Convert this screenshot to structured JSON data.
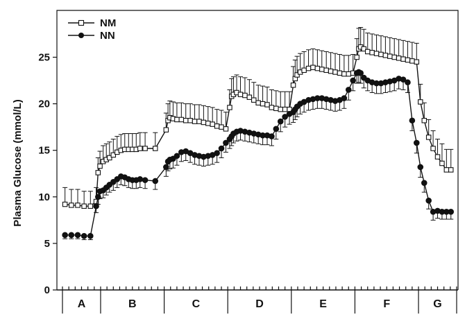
{
  "chart_data": {
    "type": "line",
    "ylabel": "Plasma Glucose (mmol/L)",
    "xlabel": "",
    "ylim": [
      0,
      30
    ],
    "yticks": [
      "0",
      "5",
      "10",
      "15",
      "20",
      "25"
    ],
    "phase_labels": [
      "A",
      "B",
      "C",
      "D",
      "E",
      "F",
      "G"
    ],
    "phase_bounds": [
      0,
      6,
      16,
      26,
      36,
      46,
      56,
      62
    ],
    "legend": {
      "position": "top-left"
    },
    "series": [
      {
        "name": "NM",
        "marker": "open-square",
        "x": [
          0.4,
          1.4,
          2.4,
          3.4,
          4.4,
          5.3,
          5.6,
          5.9,
          6.4,
          6.9,
          7.4,
          8.0,
          8.6,
          9.2,
          9.8,
          10.4,
          11.0,
          11.6,
          12.2,
          13.0,
          14.6,
          16.3,
          16.6,
          16.9,
          17.4,
          18.0,
          18.7,
          19.4,
          20.1,
          20.8,
          21.5,
          22.2,
          22.9,
          23.6,
          24.3,
          25.0,
          25.7,
          26.3,
          26.6,
          26.9,
          27.4,
          28.0,
          28.7,
          29.4,
          30.1,
          30.8,
          31.5,
          32.2,
          32.9,
          33.6,
          34.3,
          35.0,
          35.7,
          36.3,
          36.6,
          36.9,
          37.4,
          38.0,
          38.7,
          39.4,
          40.1,
          40.8,
          41.5,
          42.2,
          42.9,
          43.6,
          44.3,
          45.0,
          45.7,
          46.3,
          46.6,
          46.9,
          47.4,
          48.0,
          48.7,
          49.4,
          50.1,
          50.8,
          51.5,
          52.2,
          52.9,
          53.6,
          54.3,
          55.0,
          55.7,
          56.3,
          56.9,
          57.6,
          58.3,
          59.0,
          59.7,
          60.4,
          61.1
        ],
        "y": [
          9.2,
          9.1,
          9.1,
          9.0,
          9.0,
          9.5,
          12.6,
          13.3,
          13.8,
          14.0,
          14.2,
          14.5,
          14.8,
          15.0,
          15.1,
          15.1,
          15.1,
          15.1,
          15.2,
          15.2,
          15.2,
          17.2,
          18.2,
          18.5,
          18.4,
          18.3,
          18.3,
          18.2,
          18.2,
          18.1,
          18.1,
          18.0,
          17.9,
          17.8,
          17.6,
          17.5,
          17.3,
          19.6,
          20.8,
          21.0,
          21.2,
          21.0,
          20.9,
          20.7,
          20.4,
          20.1,
          20.0,
          19.9,
          19.6,
          19.5,
          19.4,
          19.4,
          19.4,
          22.0,
          22.7,
          23.1,
          23.4,
          23.6,
          23.8,
          23.9,
          23.8,
          23.7,
          23.6,
          23.5,
          23.4,
          23.3,
          23.2,
          23.2,
          23.3,
          25.0,
          25.9,
          26.1,
          25.9,
          25.6,
          25.5,
          25.4,
          25.3,
          25.2,
          25.1,
          25.0,
          24.9,
          24.8,
          24.7,
          24.6,
          24.5,
          20.2,
          18.2,
          16.4,
          15.2,
          14.3,
          13.6,
          12.9,
          12.9
        ],
        "error": [
          1.8,
          1.7,
          1.7,
          1.6,
          1.6,
          1.5,
          1.6,
          1.6,
          1.7,
          1.7,
          1.7,
          1.7,
          1.7,
          1.7,
          1.7,
          1.7,
          1.7,
          1.7,
          1.7,
          1.7,
          1.7,
          1.8,
          1.8,
          1.8,
          1.8,
          1.8,
          1.8,
          1.8,
          1.8,
          1.8,
          1.8,
          1.8,
          1.8,
          1.8,
          1.8,
          1.8,
          1.8,
          1.9,
          1.9,
          1.9,
          1.9,
          1.9,
          1.9,
          1.9,
          1.9,
          1.9,
          1.9,
          1.9,
          1.9,
          1.9,
          1.9,
          1.9,
          1.9,
          2.0,
          2.0,
          2.0,
          2.0,
          2.0,
          2.0,
          2.0,
          2.0,
          2.0,
          2.0,
          2.0,
          2.0,
          2.0,
          2.0,
          2.0,
          2.0,
          2.0,
          2.2,
          2.1,
          2.1,
          2.0,
          2.0,
          2.0,
          2.0,
          2.0,
          2.0,
          2.0,
          2.0,
          2.0,
          2.0,
          2.0,
          2.0,
          1.9,
          1.9,
          1.9,
          1.9,
          1.9,
          2.1,
          2.2,
          2.2
        ]
      },
      {
        "name": "NN",
        "marker": "filled-circle",
        "x": [
          0.4,
          1.4,
          2.4,
          3.4,
          4.4,
          5.3,
          5.6,
          5.9,
          6.4,
          6.9,
          7.4,
          8.0,
          8.6,
          9.2,
          9.8,
          10.4,
          11.0,
          11.6,
          12.2,
          13.0,
          14.6,
          16.3,
          16.6,
          16.9,
          17.4,
          18.0,
          18.7,
          19.4,
          20.1,
          20.8,
          21.5,
          22.2,
          22.9,
          23.6,
          24.3,
          25.0,
          25.7,
          26.3,
          26.6,
          26.9,
          27.4,
          28.0,
          28.7,
          29.4,
          30.1,
          30.8,
          31.5,
          32.2,
          32.9,
          33.6,
          34.3,
          35.0,
          35.7,
          36.3,
          36.6,
          36.9,
          37.4,
          38.0,
          38.7,
          39.4,
          40.1,
          40.8,
          41.5,
          42.2,
          42.9,
          43.6,
          44.3,
          45.0,
          45.7,
          46.3,
          46.6,
          46.9,
          47.4,
          48.0,
          48.7,
          49.4,
          50.1,
          50.8,
          51.5,
          52.2,
          52.9,
          53.6,
          54.3,
          55.0,
          55.7,
          56.3,
          56.9,
          57.6,
          58.3,
          59.0,
          59.7,
          60.4,
          61.1
        ],
        "y": [
          5.9,
          5.9,
          5.9,
          5.8,
          5.8,
          9.0,
          10.0,
          10.6,
          10.7,
          11.0,
          11.3,
          11.6,
          11.9,
          12.2,
          12.1,
          11.9,
          11.8,
          11.8,
          11.9,
          11.8,
          11.7,
          13.2,
          13.8,
          14.0,
          14.1,
          14.4,
          14.8,
          14.9,
          14.7,
          14.5,
          14.4,
          14.3,
          14.4,
          14.5,
          14.7,
          15.2,
          15.8,
          16.2,
          16.5,
          16.8,
          17.0,
          17.1,
          17.0,
          16.9,
          16.8,
          16.7,
          16.6,
          16.6,
          16.5,
          17.3,
          18.1,
          18.6,
          18.9,
          19.1,
          19.4,
          19.7,
          20.0,
          20.2,
          20.4,
          20.5,
          20.6,
          20.6,
          20.5,
          20.4,
          20.3,
          20.4,
          20.6,
          21.5,
          22.5,
          23.3,
          23.4,
          23.3,
          22.8,
          22.5,
          22.3,
          22.2,
          22.2,
          22.3,
          22.4,
          22.5,
          22.7,
          22.6,
          22.3,
          18.2,
          15.8,
          13.2,
          11.5,
          9.6,
          8.4,
          8.5,
          8.4,
          8.4,
          8.4
        ],
        "error": [
          0.4,
          0.4,
          0.4,
          0.4,
          0.4,
          0.7,
          0.8,
          0.8,
          0.8,
          0.8,
          0.8,
          0.9,
          0.9,
          0.9,
          0.9,
          0.9,
          0.9,
          0.9,
          0.9,
          0.9,
          0.9,
          1.0,
          1.0,
          1.0,
          1.0,
          1.0,
          1.0,
          1.0,
          1.0,
          1.0,
          1.0,
          1.0,
          1.0,
          1.0,
          1.0,
          1.0,
          1.0,
          1.0,
          1.0,
          1.0,
          1.0,
          1.0,
          1.0,
          1.0,
          1.0,
          1.0,
          1.0,
          1.0,
          1.0,
          1.1,
          1.1,
          1.1,
          1.1,
          1.1,
          1.1,
          1.1,
          1.1,
          1.1,
          1.1,
          1.1,
          1.1,
          1.1,
          1.1,
          1.1,
          1.1,
          1.1,
          1.1,
          1.1,
          1.1,
          1.1,
          1.1,
          1.1,
          1.1,
          1.1,
          1.1,
          1.1,
          1.1,
          1.1,
          1.1,
          1.1,
          1.1,
          1.1,
          1.1,
          1.1,
          1.1,
          1.1,
          1.0,
          0.9,
          0.9,
          0.8,
          0.8,
          0.8,
          0.8
        ]
      }
    ]
  }
}
